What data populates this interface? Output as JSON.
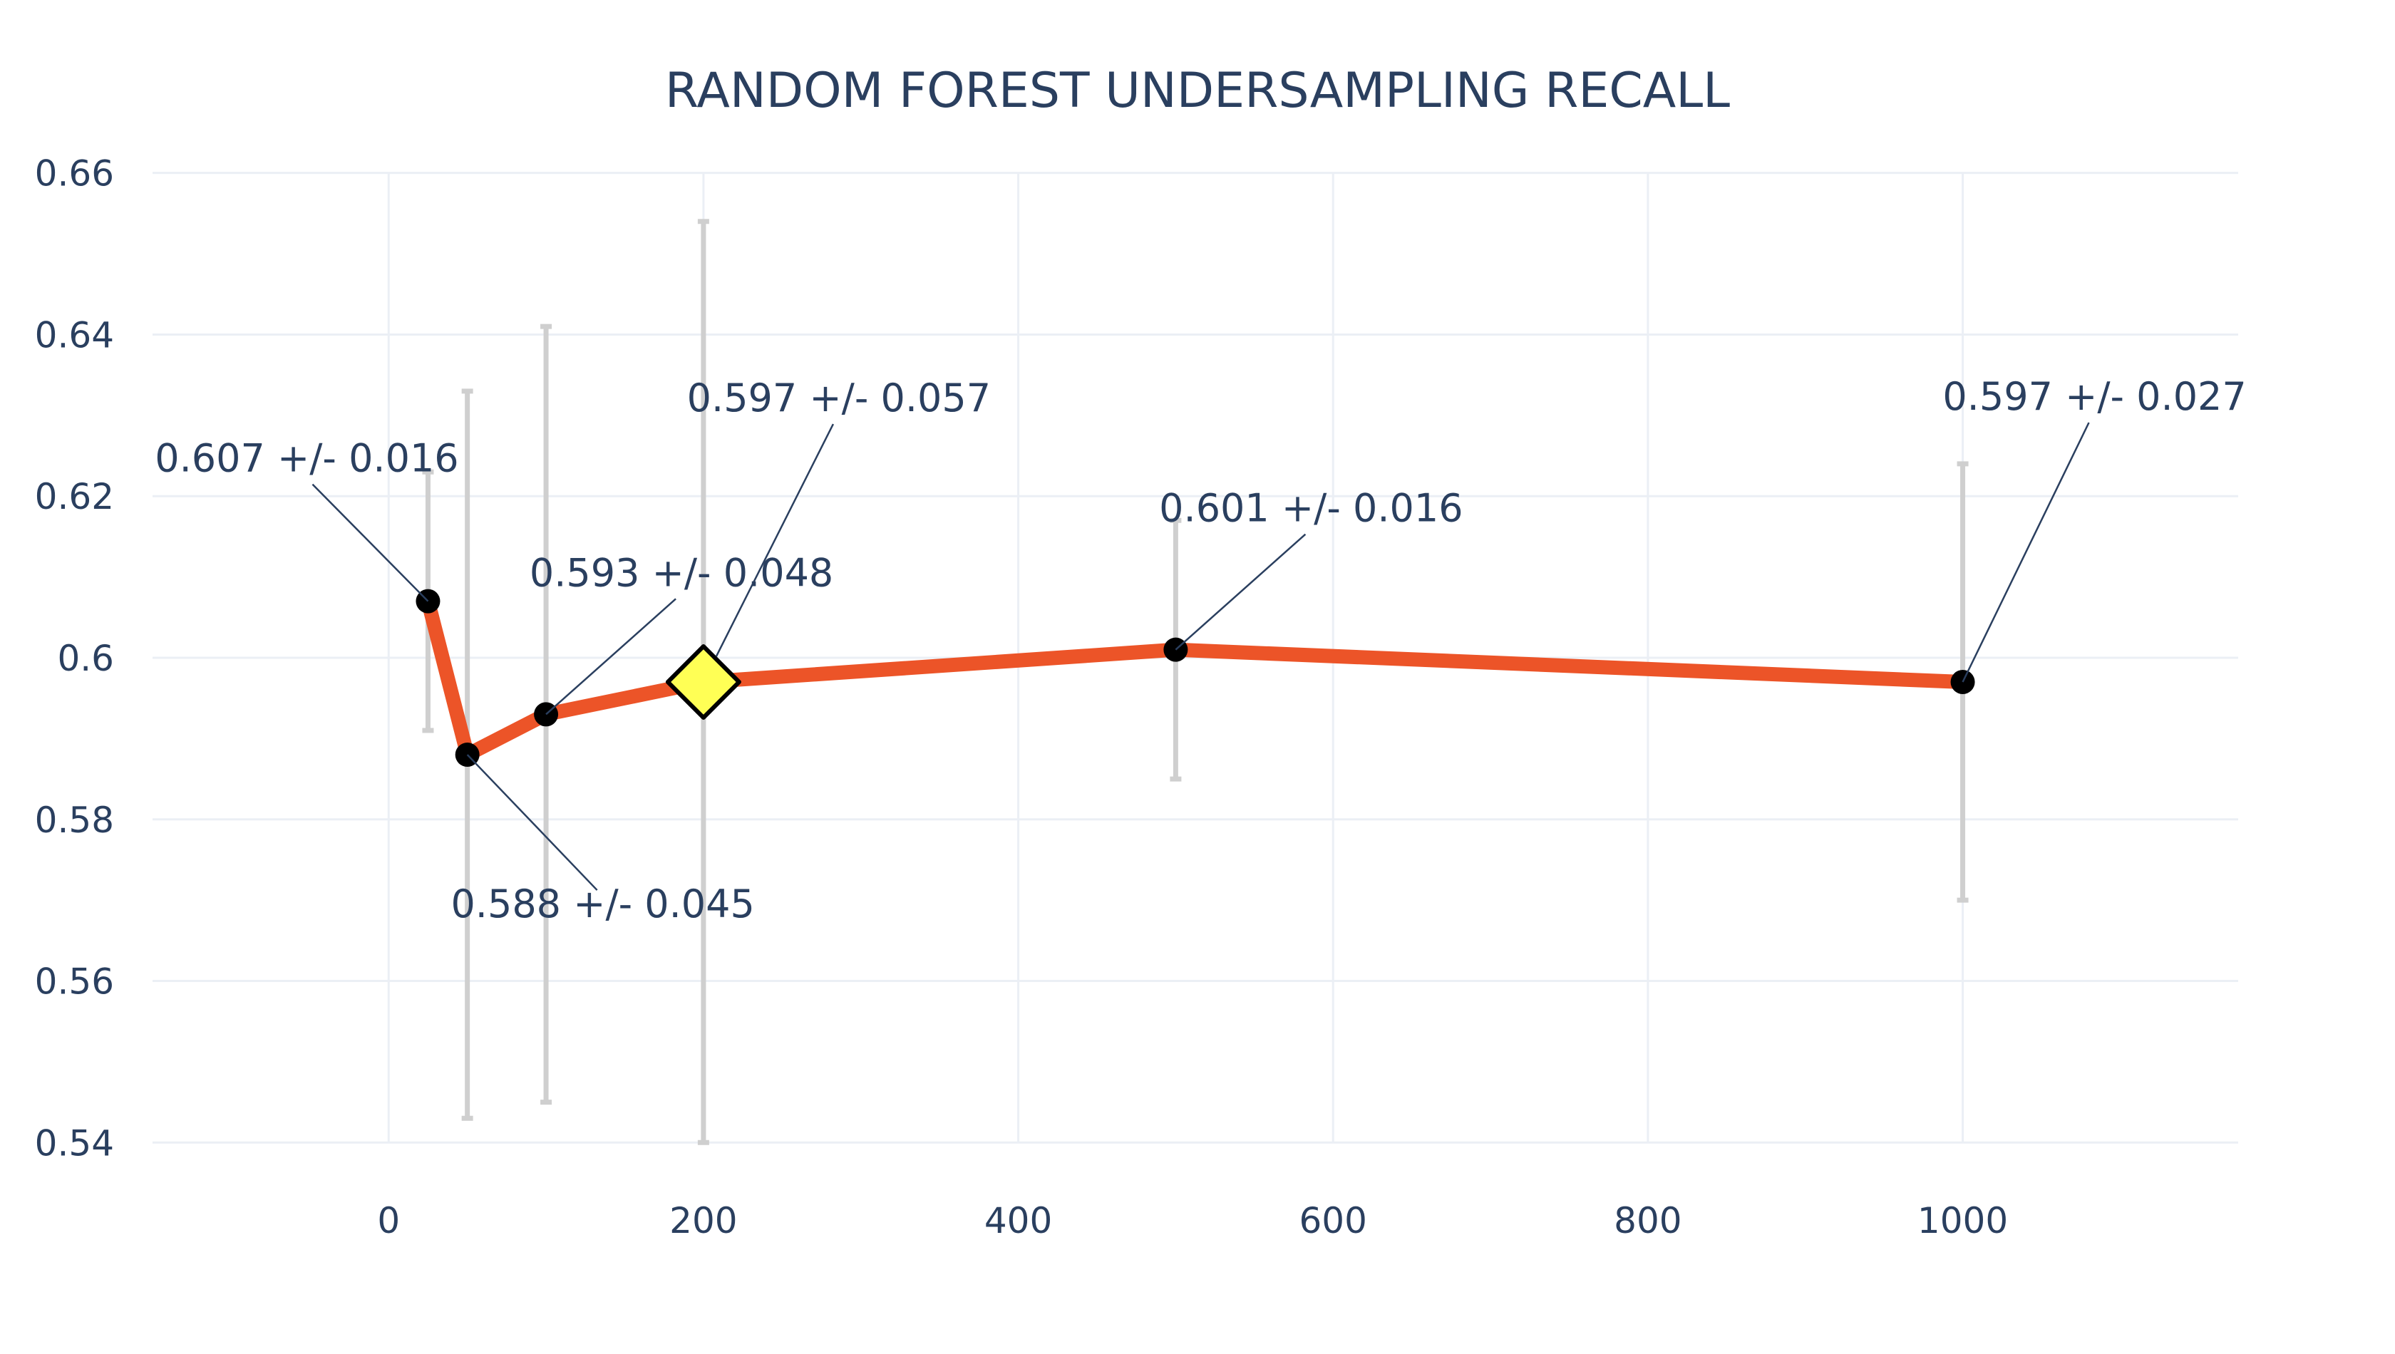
{
  "colors": {
    "line": "#ec5428",
    "marker": "#000000",
    "best_marker": "#ffff55",
    "error_bar": "#cfcfcf",
    "text": "#2a3f5f",
    "grid": "#ebeff5"
  },
  "chart_data": {
    "type": "line",
    "title": "RANDOM FOREST UNDERSAMPLING RECALL",
    "xlabel": "",
    "ylabel": "",
    "xlim": [
      -150,
      1175
    ],
    "ylim": [
      0.535,
      0.662
    ],
    "xticks": [
      0,
      200,
      400,
      600,
      800,
      1000
    ],
    "xtick_labels": [
      "0",
      "200",
      "400",
      "600",
      "800",
      "1000"
    ],
    "yticks": [
      0.54,
      0.56,
      0.58,
      0.6,
      0.62,
      0.64,
      0.66
    ],
    "ytick_labels": [
      "0.54",
      "0.56",
      "0.58",
      "0.6",
      "0.62",
      "0.64",
      "0.66"
    ],
    "grid": true,
    "series": [
      {
        "x": [
          25,
          50,
          100,
          200,
          500,
          1000
        ],
        "y": [
          0.607,
          0.588,
          0.593,
          0.597,
          0.601,
          0.597
        ],
        "error": [
          0.016,
          0.045,
          0.048,
          0.057,
          0.016,
          0.027
        ]
      }
    ],
    "best_point_index": 3,
    "annotations": [
      {
        "point": 0,
        "text": "0.607 +/- 0.016"
      },
      {
        "point": 1,
        "text": "0.588 +/- 0.045"
      },
      {
        "point": 2,
        "text": "0.593 +/- 0.048"
      },
      {
        "point": 3,
        "text": "0.597 +/- 0.057"
      },
      {
        "point": 4,
        "text": "0.601 +/- 0.016"
      },
      {
        "point": 5,
        "text": "0.597 +/- 0.027"
      }
    ]
  }
}
